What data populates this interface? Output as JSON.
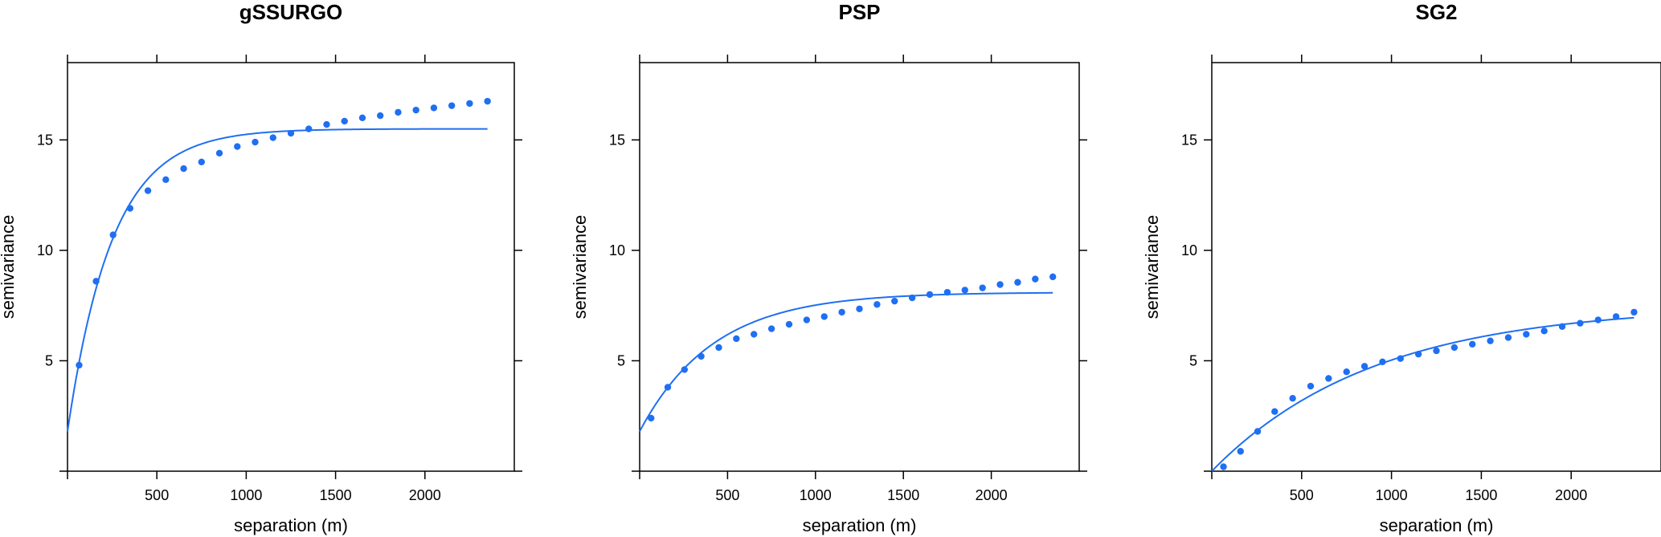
{
  "colors": {
    "series": "#1f6ff2",
    "axis": "#000000"
  },
  "chart_data": [
    {
      "type": "scatter",
      "title": "gSSURGO",
      "xlabel": "separation (m)",
      "ylabel": "semivariance",
      "xlim": [
        0,
        2500
      ],
      "ylim": [
        0,
        18.5
      ],
      "x_ticks": [
        500,
        1000,
        1500,
        2000
      ],
      "y_ticks": [
        5,
        10,
        15
      ],
      "grid": false,
      "points": {
        "x": [
          65,
          160,
          255,
          350,
          450,
          550,
          650,
          750,
          850,
          950,
          1050,
          1150,
          1250,
          1350,
          1450,
          1550,
          1650,
          1750,
          1850,
          1950,
          2050,
          2150,
          2250,
          2350
        ],
        "y": [
          4.8,
          8.6,
          10.7,
          11.9,
          12.7,
          13.2,
          13.7,
          14.0,
          14.4,
          14.7,
          14.9,
          15.1,
          15.3,
          15.5,
          15.7,
          15.85,
          16.0,
          16.1,
          16.25,
          16.35,
          16.45,
          16.55,
          16.65,
          16.75
        ]
      },
      "fit": {
        "model": "exponential",
        "nugget": 1.8,
        "sill": 15.5,
        "range": 250,
        "x_max": 2350
      }
    },
    {
      "type": "scatter",
      "title": "PSP",
      "xlabel": "separation (m)",
      "ylabel": "semivariance",
      "xlim": [
        0,
        2500
      ],
      "ylim": [
        0,
        18.5
      ],
      "x_ticks": [
        500,
        1000,
        1500,
        2000
      ],
      "y_ticks": [
        5,
        10,
        15
      ],
      "grid": false,
      "points": {
        "x": [
          65,
          160,
          255,
          350,
          450,
          550,
          650,
          750,
          850,
          950,
          1050,
          1150,
          1250,
          1350,
          1450,
          1550,
          1650,
          1750,
          1850,
          1950,
          2050,
          2150,
          2250,
          2350
        ],
        "y": [
          2.4,
          3.8,
          4.6,
          5.2,
          5.6,
          6.0,
          6.2,
          6.45,
          6.65,
          6.85,
          7.0,
          7.2,
          7.35,
          7.55,
          7.7,
          7.85,
          8.0,
          8.1,
          8.2,
          8.3,
          8.45,
          8.55,
          8.7,
          8.8
        ]
      },
      "fit": {
        "model": "exponential",
        "nugget": 1.8,
        "sill": 8.1,
        "range": 420,
        "x_max": 2350
      }
    },
    {
      "type": "scatter",
      "title": "SG2",
      "xlabel": "separation (m)",
      "ylabel": "semivariance",
      "xlim": [
        0,
        2500
      ],
      "ylim": [
        0,
        18.5
      ],
      "x_ticks": [
        500,
        1000,
        1500,
        2000
      ],
      "y_ticks": [
        5,
        10,
        15
      ],
      "grid": false,
      "points": {
        "x": [
          65,
          160,
          255,
          350,
          450,
          550,
          650,
          750,
          850,
          950,
          1050,
          1150,
          1250,
          1350,
          1450,
          1550,
          1650,
          1750,
          1850,
          1950,
          2050,
          2150,
          2250,
          2350
        ],
        "y": [
          0.2,
          0.9,
          1.8,
          2.7,
          3.3,
          3.85,
          4.2,
          4.5,
          4.75,
          4.95,
          5.1,
          5.3,
          5.45,
          5.6,
          5.75,
          5.9,
          6.05,
          6.2,
          6.35,
          6.55,
          6.7,
          6.85,
          7.0,
          7.2
        ]
      },
      "fit": {
        "model": "exponential",
        "nugget": 0.0,
        "sill": 7.5,
        "range": 900,
        "x_max": 2350
      }
    }
  ]
}
